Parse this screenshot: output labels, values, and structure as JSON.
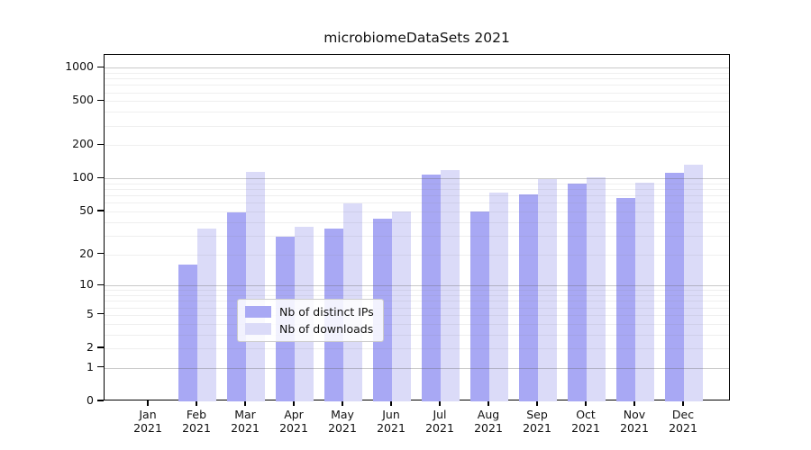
{
  "title": "microbiomeDataSets 2021",
  "chart_data": {
    "type": "bar",
    "title": "microbiomeDataSets 2021",
    "categories": [
      "Jan 2021",
      "Feb 2021",
      "Mar 2021",
      "Apr 2021",
      "May 2021",
      "Jun 2021",
      "Jul 2021",
      "Aug 2021",
      "Sep 2021",
      "Oct 2021",
      "Nov 2021",
      "Dec 2021"
    ],
    "series": [
      {
        "name": "Nb of distinct IPs",
        "color": "#a8a8f4",
        "values": [
          0,
          16,
          49,
          29,
          35,
          43,
          108,
          50,
          71,
          89,
          67,
          112
        ]
      },
      {
        "name": "Nb of downloads",
        "color": "#dbdbf8",
        "values": [
          0,
          35,
          115,
          36,
          59,
          50,
          118,
          75,
          98,
          102,
          91,
          133
        ]
      }
    ],
    "y_ticks": [
      0,
      1,
      2,
      5,
      10,
      20,
      50,
      100,
      200,
      500,
      1000
    ],
    "y_minor_gridlines": [
      2,
      3,
      4,
      5,
      6,
      7,
      8,
      9,
      20,
      30,
      40,
      50,
      60,
      70,
      80,
      90,
      200,
      300,
      400,
      500,
      600,
      700,
      800,
      900
    ],
    "y_major_gridlines": [
      1,
      10,
      100,
      1000
    ],
    "y_scale": "log1p",
    "ylim": [
      0,
      1300
    ],
    "xlabel": "",
    "ylabel": "",
    "grid": "on",
    "legend_position": "lower-center",
    "axis_color": "#000000",
    "background_color": "#ffffff"
  }
}
